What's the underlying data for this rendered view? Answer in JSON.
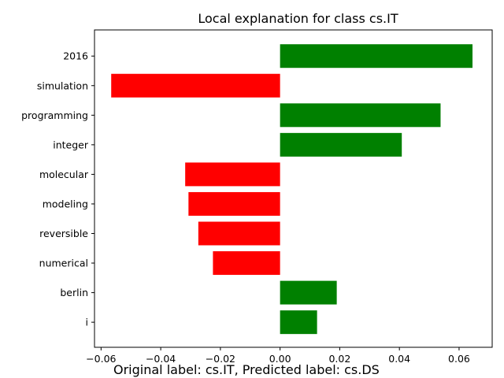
{
  "chart_data": {
    "type": "bar",
    "orientation": "horizontal",
    "title": "Local explanation for class cs.IT",
    "xlabel": "",
    "ylabel": "",
    "categories": [
      "2016",
      "simulation",
      "programming",
      "integer",
      "molecular",
      "modeling",
      "reversible",
      "numerical",
      "berlin",
      "i"
    ],
    "values": [
      0.0645,
      -0.0566,
      0.0538,
      0.0408,
      -0.0318,
      -0.0307,
      -0.0274,
      -0.0225,
      0.019,
      0.0124
    ],
    "xlim": [
      -0.0622,
      0.0711
    ],
    "xticks": [
      -0.06,
      -0.04,
      -0.02,
      0.0,
      0.02,
      0.04,
      0.06
    ],
    "xtick_labels": [
      "−0.06",
      "−0.04",
      "−0.02",
      "0.00",
      "0.02",
      "0.04",
      "0.06"
    ],
    "grid": false,
    "colors": {
      "positive": "#008000",
      "negative": "#ff0000"
    }
  },
  "footer": {
    "caption": "Original label: cs.IT, Predicted label: cs.DS"
  }
}
